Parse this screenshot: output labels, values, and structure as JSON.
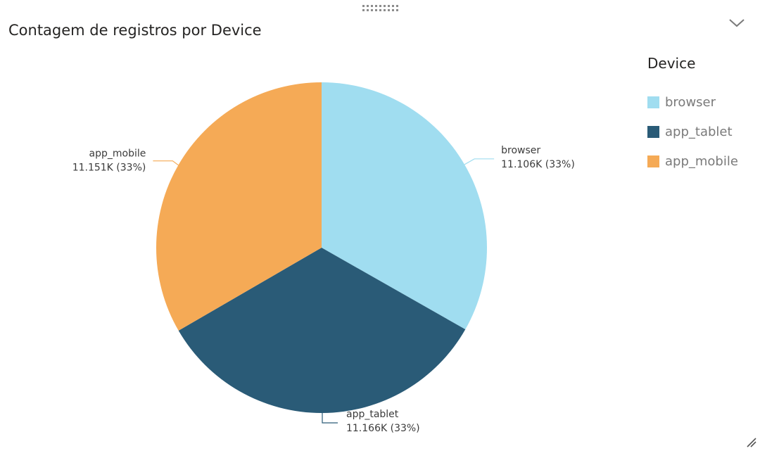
{
  "visual": {
    "title": "Contagem de registros por Device",
    "icons": {
      "drag": "drag-handle-icon",
      "collapse": "chevron-down-icon",
      "resize": "resize-grip-icon"
    }
  },
  "legend": {
    "title": "Device",
    "items": [
      {
        "label": "browser",
        "color": "#A0DDF0"
      },
      {
        "label": "app_tablet",
        "color": "#2A5B77"
      },
      {
        "label": "app_mobile",
        "color": "#F5AA56"
      }
    ]
  },
  "chart_data": {
    "type": "pie",
    "title": "Contagem de registros por Device",
    "legend_title": "Device",
    "legend_position": "right",
    "slices": [
      {
        "name": "browser",
        "value": 11106,
        "value_label": "11.106K (33%)",
        "percent": 33,
        "color": "#A0DDF0"
      },
      {
        "name": "app_tablet",
        "value": 11166,
        "value_label": "11.166K (33%)",
        "percent": 33,
        "color": "#2A5B77"
      },
      {
        "name": "app_mobile",
        "value": 11151,
        "value_label": "11.151K (33%)",
        "percent": 33,
        "color": "#F5AA56"
      }
    ]
  }
}
